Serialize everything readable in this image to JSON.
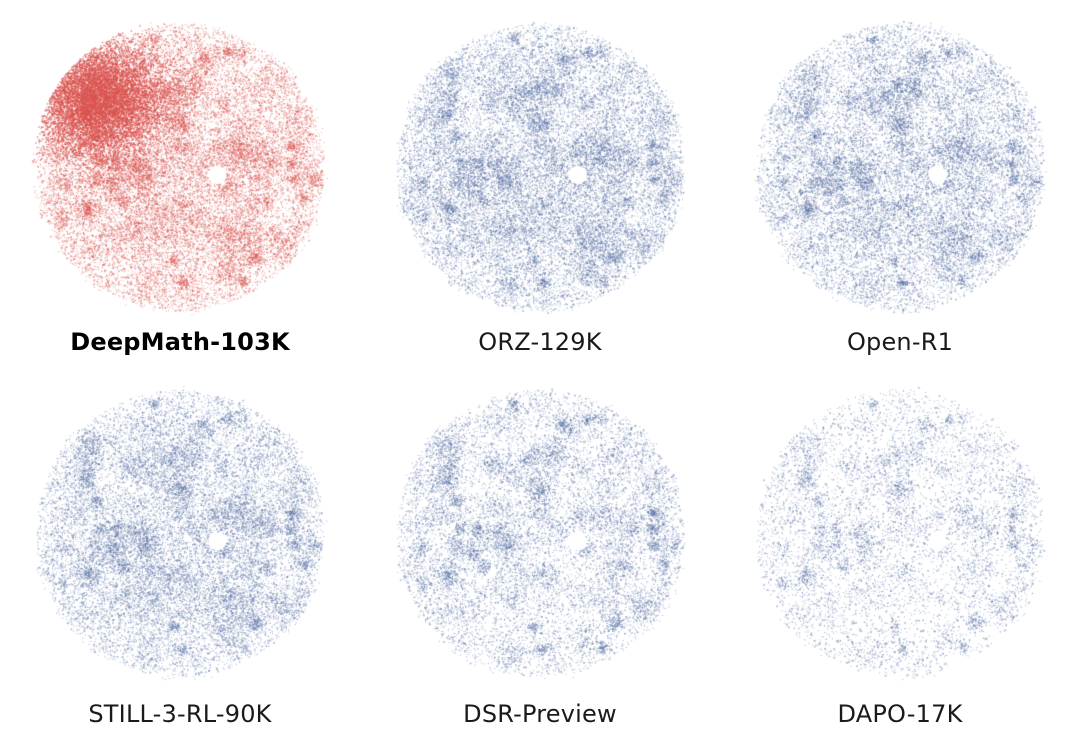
{
  "chart_data": {
    "type": "scatter",
    "description_style": "t-SNE embedding point clouds, one per dataset",
    "panels": [
      {
        "name": "DeepMath-103K",
        "highlight": true,
        "color": "#d9534f",
        "density": 1.0
      },
      {
        "name": "ORZ-129K",
        "highlight": false,
        "color": "#5b72a6",
        "density": 0.9
      },
      {
        "name": "Open-R1",
        "highlight": false,
        "color": "#5b72a6",
        "density": 0.8
      },
      {
        "name": "STILL-3-RL-90K",
        "highlight": false,
        "color": "#5b72a6",
        "density": 0.8
      },
      {
        "name": "DSR-Preview",
        "highlight": false,
        "color": "#5b72a6",
        "density": 0.6
      },
      {
        "name": "DAPO-17K",
        "highlight": false,
        "color": "#5b72a6",
        "density": 0.35
      }
    ]
  }
}
